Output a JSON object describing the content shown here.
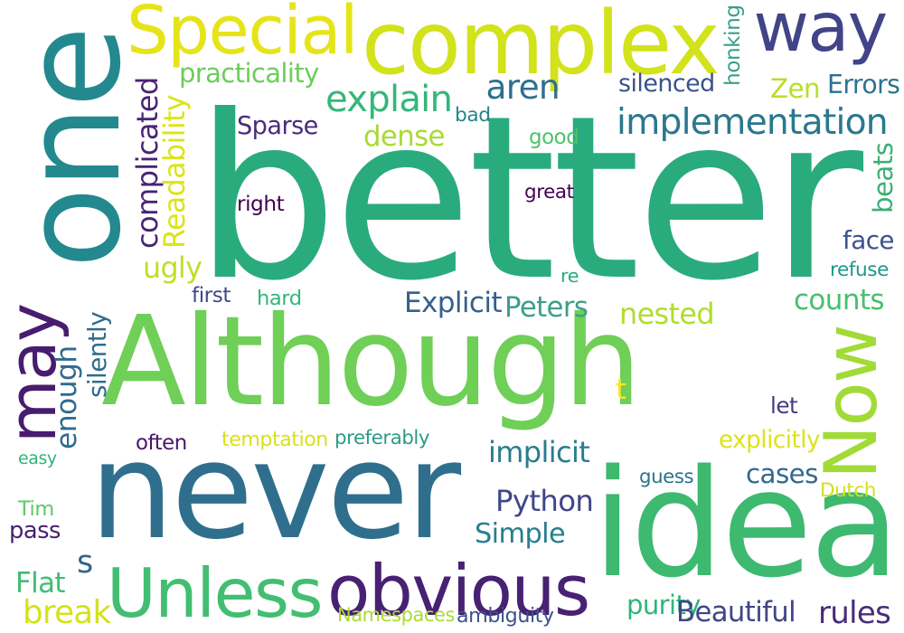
{
  "colors": {
    "background": "#ffffff",
    "palette": [
      "#440154",
      "#46327e",
      "#365c8d",
      "#277f8e",
      "#1fa187",
      "#4ac16d",
      "#a0da39",
      "#fde725"
    ]
  },
  "words": [
    {
      "text": "better",
      "color": "#2aab7d"
    },
    {
      "text": "Although",
      "color": "#6fcf57"
    },
    {
      "text": "never",
      "color": "#2f6f8d"
    },
    {
      "text": "idea",
      "color": "#3db970"
    },
    {
      "text": "one",
      "color": "#23898e"
    },
    {
      "text": "Special",
      "color": "#e6e419"
    },
    {
      "text": "complex",
      "color": "#d2e21b"
    },
    {
      "text": "way",
      "color": "#414487"
    },
    {
      "text": "may",
      "color": "#481c6e"
    },
    {
      "text": "Now",
      "color": "#a2da37"
    },
    {
      "text": "obvious",
      "color": "#482173"
    },
    {
      "text": "Unless",
      "color": "#42be71"
    },
    {
      "text": "implementation",
      "color": "#2a788e"
    },
    {
      "text": "explain",
      "color": "#35b779"
    },
    {
      "text": "practicality",
      "color": "#6ccd5a"
    },
    {
      "text": "aren",
      "color": "#2d708e"
    },
    {
      "text": "silenced",
      "color": "#3b528b"
    },
    {
      "text": "honking",
      "color": "#3e9e8a"
    },
    {
      "text": "Zen",
      "color": "#bade28"
    },
    {
      "text": "Errors",
      "color": "#2c728e"
    },
    {
      "text": "complicated",
      "color": "#482475"
    },
    {
      "text": "Readability",
      "color": "#dde318"
    },
    {
      "text": "Sparse",
      "color": "#472d7b"
    },
    {
      "text": "dense",
      "color": "#a8db34"
    },
    {
      "text": "bad",
      "color": "#25858e"
    },
    {
      "text": "good",
      "color": "#4fc16b"
    },
    {
      "text": "great",
      "color": "#440154"
    },
    {
      "text": "right",
      "color": "#440154"
    },
    {
      "text": "beats",
      "color": "#3ab075"
    },
    {
      "text": "face",
      "color": "#3b528b"
    },
    {
      "text": "refuse",
      "color": "#1f968b"
    },
    {
      "text": "ugly",
      "color": "#bfdf25"
    },
    {
      "text": "first",
      "color": "#3e4989"
    },
    {
      "text": "hard",
      "color": "#32b67a"
    },
    {
      "text": "re",
      "color": "#25ab82"
    },
    {
      "text": "counts",
      "color": "#46c06f"
    },
    {
      "text": "Explicit",
      "color": "#355f8d"
    },
    {
      "text": "Peters",
      "color": "#3e9e8a"
    },
    {
      "text": "nested",
      "color": "#b0dd2f"
    },
    {
      "text": "silently",
      "color": "#2f6b8e"
    },
    {
      "text": "enough",
      "color": "#2f6b8e"
    },
    {
      "text": "t",
      "color": "#fde725"
    },
    {
      "text": "let",
      "color": "#443a83"
    },
    {
      "text": "often",
      "color": "#481668"
    },
    {
      "text": "temptation",
      "color": "#d8e219"
    },
    {
      "text": "preferably",
      "color": "#2a9c86"
    },
    {
      "text": "implicit",
      "color": "#287d8e"
    },
    {
      "text": "explicitly",
      "color": "#dde318"
    },
    {
      "text": "easy",
      "color": "#2fb47c"
    },
    {
      "text": "cases",
      "color": "#306a8e"
    },
    {
      "text": "guess",
      "color": "#2c738e"
    },
    {
      "text": "Dutch",
      "color": "#d0e11c"
    },
    {
      "text": "Python",
      "color": "#3f4788"
    },
    {
      "text": "Tim",
      "color": "#5ec962"
    },
    {
      "text": "pass",
      "color": "#481f70"
    },
    {
      "text": "Simple",
      "color": "#277f8e"
    },
    {
      "text": "s",
      "color": "#33638d"
    },
    {
      "text": "Flat",
      "color": "#40bd72"
    },
    {
      "text": "break",
      "color": "#d5e21a"
    },
    {
      "text": "purity",
      "color": "#2fb47c"
    },
    {
      "text": "Beautiful",
      "color": "#404688"
    },
    {
      "text": "rules",
      "color": "#472c7a"
    },
    {
      "text": "Namespaces",
      "color": "#a8db34"
    },
    {
      "text": "ambiguity",
      "color": "#3b528b"
    }
  ]
}
